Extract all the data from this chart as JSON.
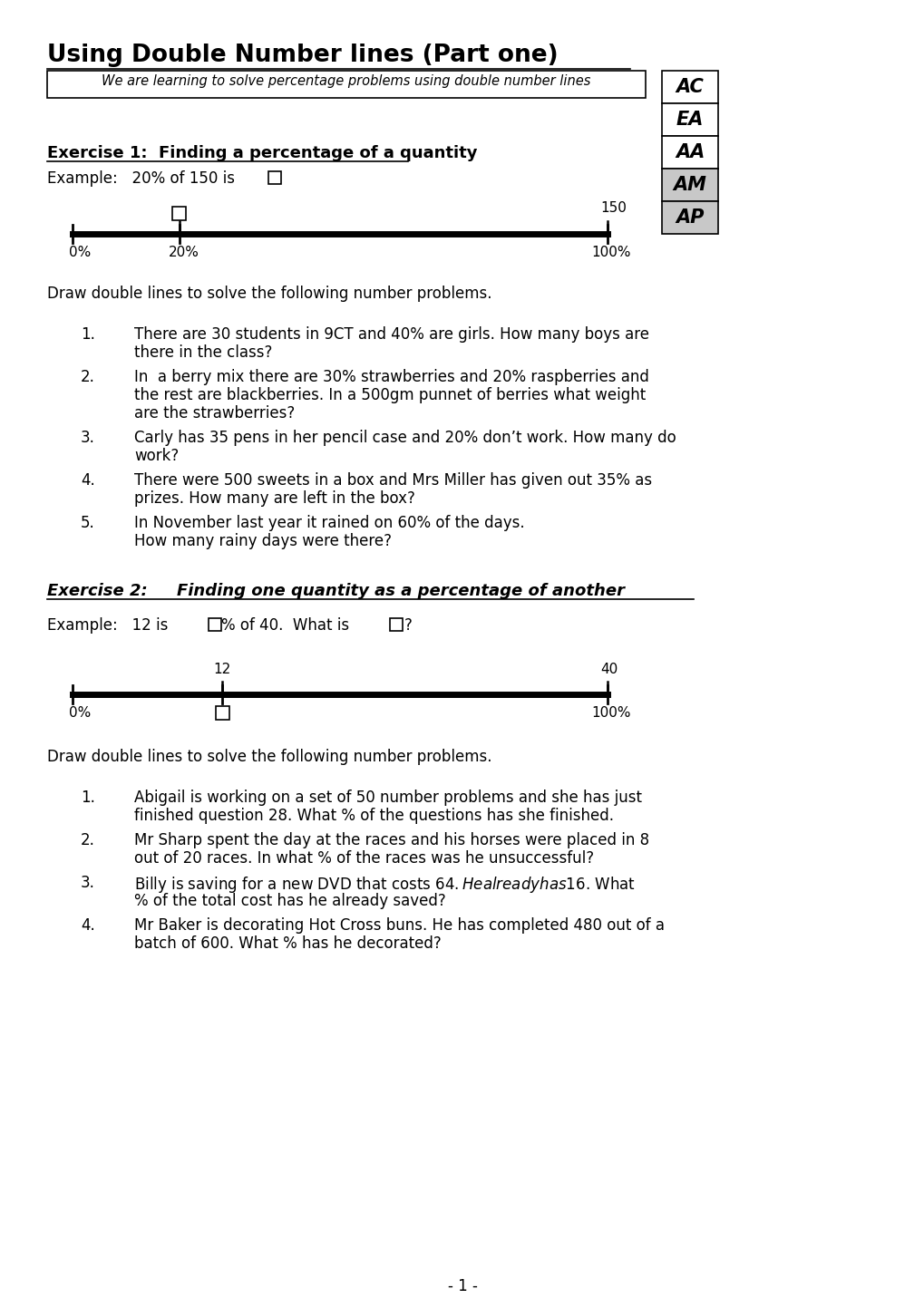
{
  "title": "Using Double Number lines (Part one)",
  "subtitle": "We are learning to solve percentage problems using double number lines",
  "bg_color": "#ffffff",
  "text_color": "#000000",
  "grade_labels": [
    "AC",
    "EA",
    "AA",
    "AM",
    "AP"
  ],
  "grade_shading": [
    false,
    false,
    false,
    true,
    true
  ],
  "exercise1_title": "Exercise 1:  Finding a percentage of a quantity",
  "ex1_problems_intro": "Draw double lines to solve the following number problems.",
  "ex1_problems": [
    [
      "1.",
      "There are 30 students in 9CT and 40% are girls. How many boys are",
      "there in the class?"
    ],
    [
      "2.",
      "In  a berry mix there are 30% strawberries and 20% raspberries and",
      "the rest are blackberries. In a 500gm punnet of berries what weight",
      "are the strawberries?"
    ],
    [
      "3.",
      "Carly has 35 pens in her pencil case and 20% don’t work. How many do",
      "work?"
    ],
    [
      "4.",
      "There were 500 sweets in a box and Mrs Miller has given out 35% as",
      "prizes. How many are left in the box?"
    ],
    [
      "5.",
      "In November last year it rained on 60% of the days.",
      "How many rainy days were there?"
    ]
  ],
  "exercise2_title_bold": "Exercise 2:",
  "exercise2_title_italic": "    Finding one quantity as a percentage of another",
  "ex2_problems_intro": "Draw double lines to solve the following number problems.",
  "ex2_problems": [
    [
      "1.",
      "Abigail is working on a set of 50 number problems and she has just",
      "finished question 28. What % of the questions has she finished."
    ],
    [
      "2.",
      "Mr Sharp spent the day at the races and his horses were placed in 8",
      "out of 20 races. In what % of the races was he unsuccessful?"
    ],
    [
      "3.",
      "Billy is saving for a new DVD that costs $64. He already has $16. What",
      "% of the total cost has he already saved?"
    ],
    [
      "4.",
      "Mr Baker is decorating Hot Cross buns. He has completed 480 out of a",
      "batch of 600. What % has he decorated?"
    ]
  ],
  "page_number": "- 1 -"
}
